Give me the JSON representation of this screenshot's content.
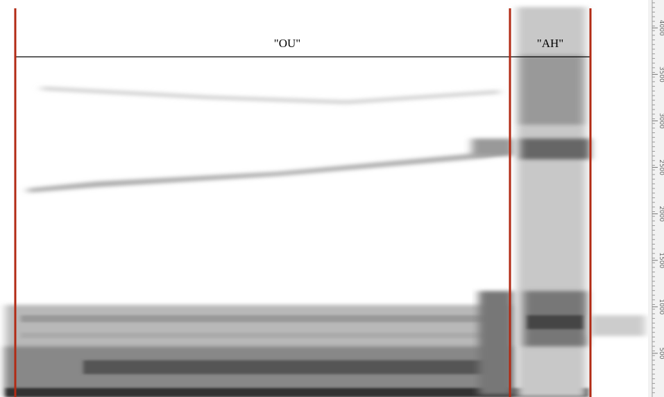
{
  "chart_data": {
    "type": "spectrogram",
    "segments": [
      "\"OU\"",
      "\"AH\""
    ],
    "ylim": [
      30,
      4300
    ],
    "yticks": [
      500,
      1000,
      1500,
      2000,
      2500,
      3000,
      3500,
      4000
    ]
  }
}
